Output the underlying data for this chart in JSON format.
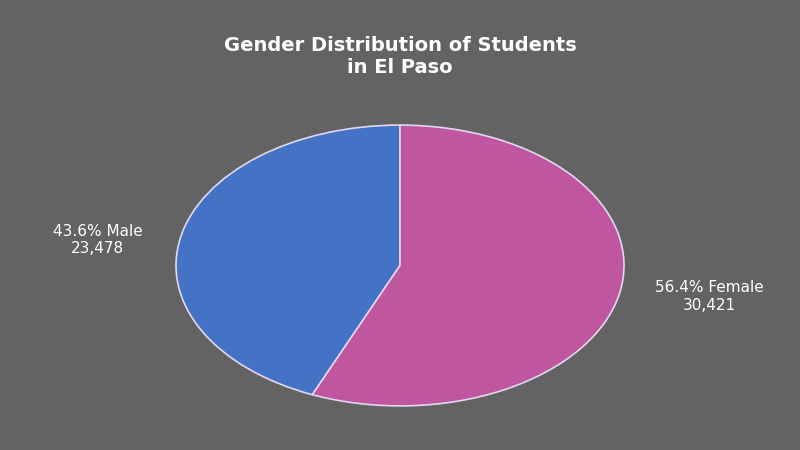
{
  "title": "Gender Distribution of Students\nin El Paso",
  "title_fontsize": 14,
  "title_color": "#ffffff",
  "background_color": "#636363",
  "slices": [
    43.6,
    56.4
  ],
  "labels": [
    "43.6% Male\n23,478",
    "56.4% Female\n30,421"
  ],
  "colors": [
    "#4472c4",
    "#c055a0"
  ],
  "wedge_edge_color": "#e0d8f0",
  "wedge_edge_width": 1.2,
  "label_color": "#ffffff",
  "label_fontsize": 11,
  "startangle": 90
}
